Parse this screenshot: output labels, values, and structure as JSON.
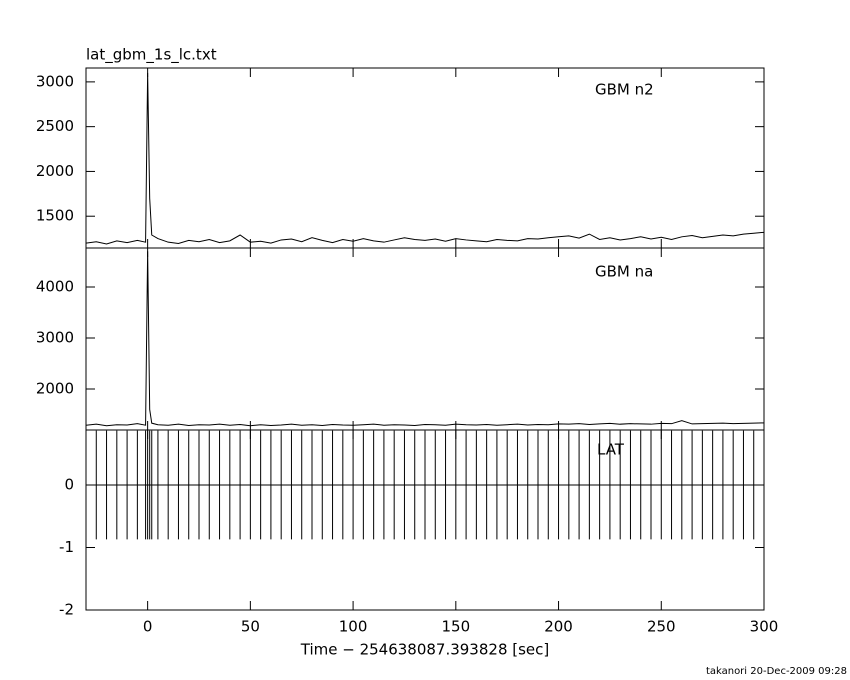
{
  "chart_data": [
    {
      "type": "line",
      "title": "lat_gbm_1s_lc.txt",
      "x": [
        -30,
        -25,
        -20,
        -15,
        -10,
        -5,
        -1,
        0,
        1,
        2,
        5,
        10,
        15,
        20,
        25,
        30,
        35,
        40,
        45,
        50,
        55,
        60,
        65,
        70,
        75,
        80,
        85,
        90,
        95,
        100,
        105,
        110,
        115,
        120,
        125,
        130,
        135,
        140,
        145,
        150,
        155,
        160,
        165,
        170,
        175,
        180,
        185,
        190,
        195,
        200,
        205,
        210,
        215,
        220,
        225,
        230,
        235,
        240,
        245,
        250,
        255,
        260,
        265,
        270,
        275,
        280,
        285,
        290,
        295,
        300
      ],
      "series": [
        {
          "name": "GBM n2",
          "color": "#000000",
          "values": [
            1200,
            1215,
            1190,
            1225,
            1205,
            1230,
            1210,
            3100,
            1700,
            1290,
            1250,
            1210,
            1195,
            1230,
            1215,
            1240,
            1205,
            1225,
            1290,
            1210,
            1220,
            1200,
            1235,
            1245,
            1215,
            1260,
            1230,
            1205,
            1240,
            1220,
            1250,
            1225,
            1210,
            1235,
            1260,
            1240,
            1230,
            1245,
            1220,
            1250,
            1235,
            1225,
            1215,
            1240,
            1230,
            1225,
            1250,
            1245,
            1260,
            1270,
            1280,
            1255,
            1300,
            1240,
            1260,
            1235,
            1250,
            1270,
            1245,
            1265,
            1240,
            1270,
            1285,
            1260,
            1275,
            1290,
            1280,
            1300,
            1310,
            1320
          ]
        }
      ],
      "xlim": [
        -30,
        300
      ],
      "xticks": [
        0,
        50,
        100,
        150,
        200,
        250,
        300
      ],
      "ylim": [
        1145,
        3155
      ],
      "yticks": [
        1500,
        2000,
        2500,
        3000
      ]
    },
    {
      "type": "line",
      "x": [
        -30,
        -25,
        -20,
        -15,
        -10,
        -5,
        -1,
        0,
        1,
        2,
        5,
        10,
        15,
        20,
        25,
        30,
        35,
        40,
        45,
        50,
        55,
        60,
        65,
        70,
        75,
        80,
        85,
        90,
        95,
        100,
        105,
        110,
        115,
        120,
        125,
        130,
        135,
        140,
        145,
        150,
        155,
        160,
        165,
        170,
        175,
        180,
        185,
        190,
        195,
        200,
        205,
        210,
        215,
        220,
        225,
        230,
        235,
        240,
        245,
        250,
        255,
        260,
        265,
        270,
        275,
        280,
        285,
        290,
        295,
        300
      ],
      "series": [
        {
          "name": "GBM na",
          "color": "#000000",
          "values": [
            1290,
            1310,
            1280,
            1300,
            1295,
            1320,
            1290,
            4700,
            1600,
            1330,
            1300,
            1290,
            1310,
            1285,
            1300,
            1295,
            1310,
            1290,
            1305,
            1280,
            1300,
            1285,
            1295,
            1310,
            1290,
            1300,
            1285,
            1305,
            1295,
            1290,
            1300,
            1310,
            1290,
            1300,
            1295,
            1285,
            1305,
            1300,
            1290,
            1310,
            1300,
            1295,
            1305,
            1290,
            1300,
            1310,
            1295,
            1305,
            1300,
            1315,
            1310,
            1320,
            1305,
            1315,
            1325,
            1310,
            1320,
            1315,
            1310,
            1325,
            1320,
            1380,
            1315,
            1320,
            1325,
            1330,
            1320,
            1325,
            1330,
            1335
          ]
        }
      ],
      "xlim": [
        -30,
        300
      ],
      "xticks": [
        0,
        50,
        100,
        150,
        200,
        250,
        300
      ],
      "ylim": [
        1196,
        4765
      ],
      "yticks": [
        2000,
        3000,
        4000
      ]
    },
    {
      "type": "errorbar",
      "xlabel": "Time − 254638087.393828 [sec]",
      "x": [
        -30,
        -25,
        -20,
        -15,
        -10,
        -5,
        -1,
        0,
        1,
        2,
        5,
        10,
        15,
        20,
        25,
        30,
        35,
        40,
        45,
        50,
        55,
        60,
        65,
        70,
        75,
        80,
        85,
        90,
        95,
        100,
        105,
        110,
        115,
        120,
        125,
        130,
        135,
        140,
        145,
        150,
        155,
        160,
        165,
        170,
        175,
        180,
        185,
        190,
        195,
        200,
        205,
        210,
        215,
        220,
        225,
        230,
        235,
        240,
        245,
        250,
        255,
        260,
        265,
        270,
        275,
        280,
        285,
        290,
        295,
        300
      ],
      "series": [
        {
          "name": "LAT",
          "color": "#000000",
          "values": [
            0,
            0,
            0,
            0,
            0,
            0,
            0,
            0,
            0,
            0,
            0,
            0,
            0,
            0,
            0,
            0,
            0,
            0,
            0,
            0,
            0,
            0,
            0,
            0,
            0,
            0,
            0,
            0,
            0,
            0,
            0,
            0,
            0,
            0,
            0,
            0,
            0,
            0,
            0,
            0,
            0,
            0,
            0,
            0,
            0,
            0,
            0,
            0,
            0,
            0,
            0,
            0,
            0,
            0,
            0,
            0,
            0,
            0,
            0,
            0,
            0,
            0,
            0,
            0,
            0,
            0,
            0,
            0,
            0,
            0
          ],
          "errors": [
            0.87,
            0.87,
            0.87,
            0.87,
            0.87,
            0.87,
            0.87,
            0.87,
            0.87,
            0.87,
            0.87,
            0.87,
            0.87,
            0.87,
            0.87,
            0.87,
            0.87,
            0.87,
            0.87,
            0.87,
            0.87,
            0.87,
            0.87,
            0.87,
            0.87,
            0.87,
            0.87,
            0.87,
            0.87,
            0.87,
            0.87,
            0.87,
            0.87,
            0.87,
            0.87,
            0.87,
            0.87,
            0.87,
            0.87,
            0.87,
            0.87,
            0.87,
            0.87,
            0.87,
            0.87,
            0.87,
            0.87,
            0.87,
            0.87,
            0.87,
            0.87,
            0.87,
            0.87,
            0.87,
            0.87,
            0.87,
            0.87,
            0.87,
            0.87,
            0.87,
            0.87,
            0.87,
            0.87,
            0.87,
            0.87,
            0.87,
            0.87,
            0.87,
            0.87,
            0.87
          ]
        }
      ],
      "xlim": [
        -30,
        300
      ],
      "xticks": [
        0,
        50,
        100,
        150,
        200,
        250,
        300
      ],
      "ylim": [
        -2,
        0.88
      ],
      "yticks": [
        -2,
        -1,
        0
      ]
    }
  ],
  "footer": "takanori 20-Dec-2009 09:28"
}
